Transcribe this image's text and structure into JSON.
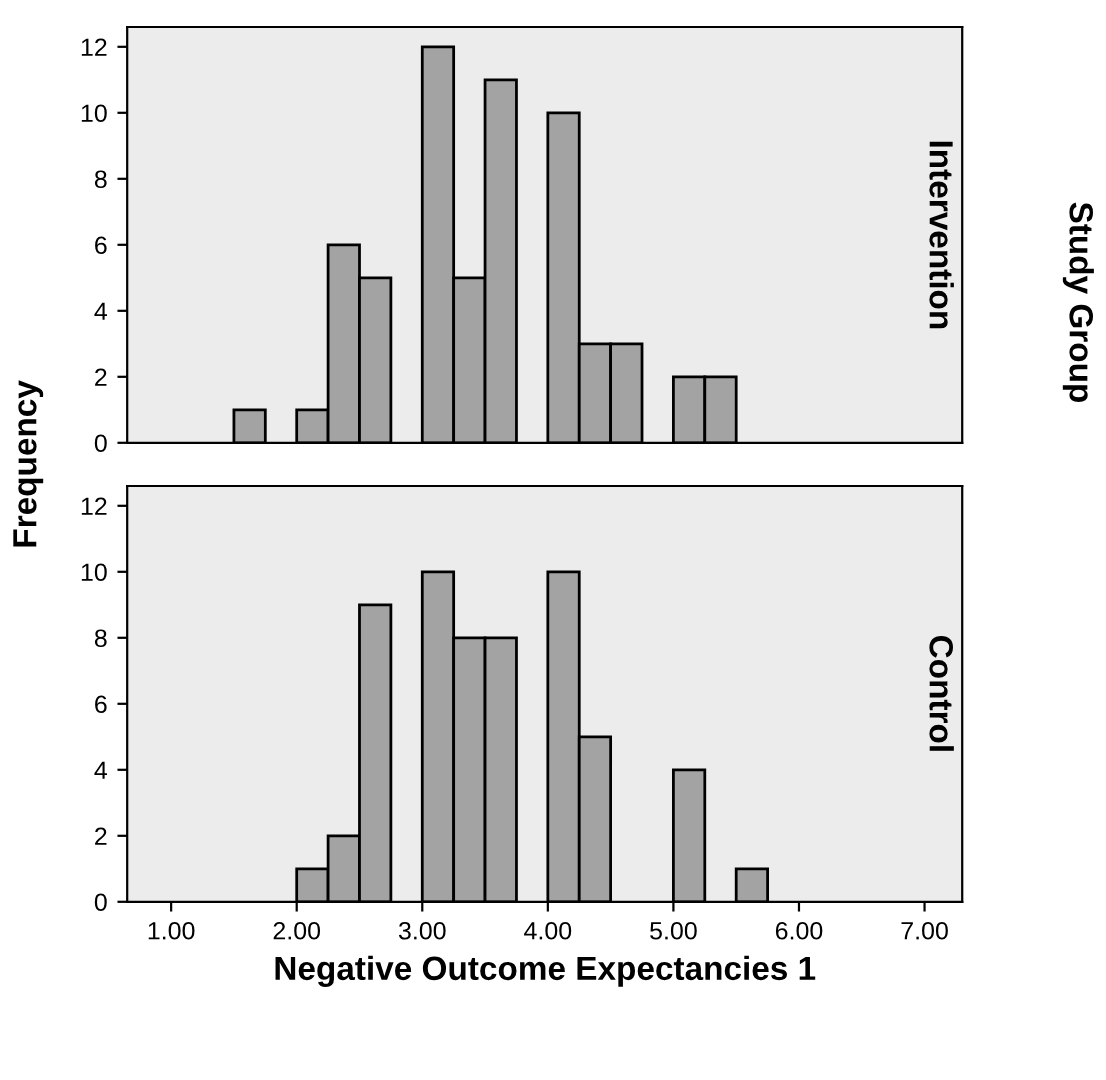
{
  "chart_data": [
    {
      "type": "histogram",
      "title": "Intervention",
      "ylabel": "Frequency",
      "annotations": [
        "Study Group"
      ],
      "color": "#a3a3a3",
      "bins": [
        1.5,
        1.75,
        2.0,
        2.25,
        2.5,
        2.75,
        3.0,
        3.25,
        3.5,
        3.75,
        4.0,
        4.25,
        4.5,
        4.75,
        5.0,
        5.25,
        5.5,
        5.75
      ],
      "values": [
        1,
        0,
        1,
        6,
        5,
        0,
        12,
        5,
        11,
        0,
        10,
        3,
        3,
        0,
        2,
        2,
        0
      ],
      "xlim": [
        0.65,
        7.3
      ],
      "ylim": [
        0,
        12.6
      ],
      "yticks": [
        0,
        2,
        4,
        6,
        8,
        10,
        12
      ],
      "tick_labels": "y",
      "grid": false
    },
    {
      "type": "histogram",
      "title": "Control",
      "xlabel": "Negative Outcome Expectancies 1",
      "color": "#a3a3a3",
      "bins": [
        1.5,
        1.75,
        2.0,
        2.25,
        2.5,
        2.75,
        3.0,
        3.25,
        3.5,
        3.75,
        4.0,
        4.25,
        4.5,
        4.75,
        5.0,
        5.25,
        5.5,
        5.75
      ],
      "values": [
        0,
        0,
        1,
        2,
        9,
        0,
        10,
        8,
        8,
        0,
        10,
        5,
        0,
        0,
        4,
        0,
        1
      ],
      "xlim": [
        0.65,
        7.3
      ],
      "ylim": [
        0,
        12.6
      ],
      "yticks": [
        0,
        2,
        4,
        6,
        8,
        10,
        12
      ],
      "xticks": [
        {
          "value": 1,
          "label": "1.00"
        },
        {
          "value": 2,
          "label": "2.00"
        },
        {
          "value": 3,
          "label": "3.00"
        },
        {
          "value": 4,
          "label": "4.00"
        },
        {
          "value": 5,
          "label": "5.00"
        },
        {
          "value": 6,
          "label": "6.00"
        },
        {
          "value": 7,
          "label": "7.00"
        }
      ],
      "grid": false
    }
  ]
}
